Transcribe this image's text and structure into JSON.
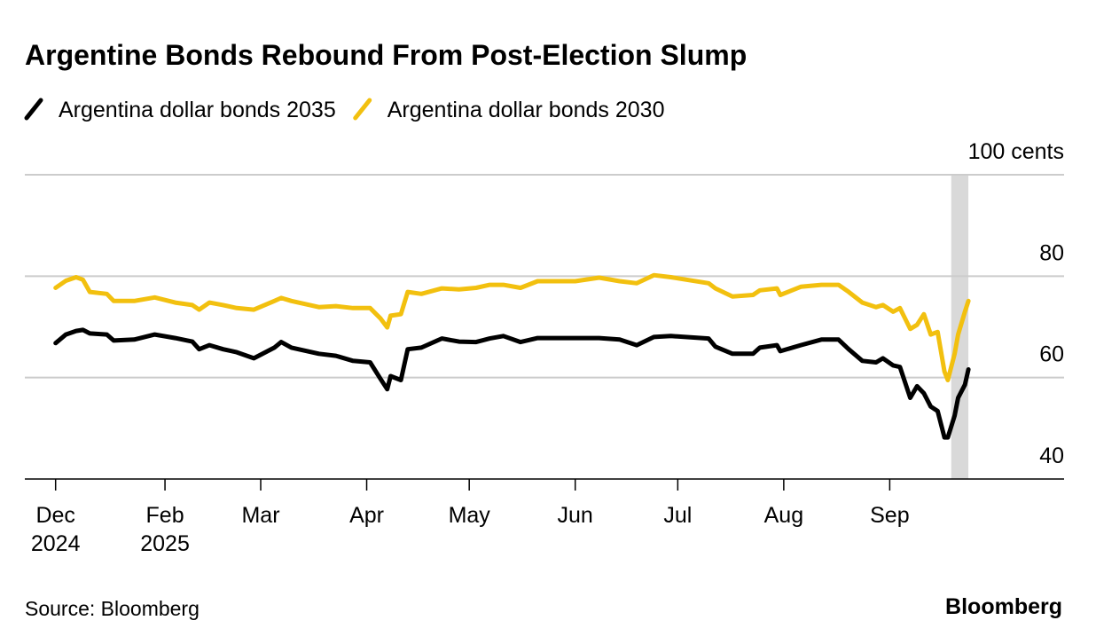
{
  "chart_data": {
    "type": "line",
    "title": "Argentine Bonds Rebound From Post-Election Slump",
    "source": "Source: Bloomberg",
    "brand": "Bloomberg",
    "x": [
      "2024-12-31",
      "2025-01-03",
      "2025-01-06",
      "2025-01-08",
      "2025-01-10",
      "2025-01-15",
      "2025-01-17",
      "2025-01-23",
      "2025-01-29",
      "2025-02-04",
      "2025-02-09",
      "2025-02-11",
      "2025-02-14",
      "2025-02-18",
      "2025-02-22",
      "2025-02-27",
      "2025-03-05",
      "2025-03-07",
      "2025-03-10",
      "2025-03-18",
      "2025-03-23",
      "2025-03-28",
      "2025-04-02",
      "2025-04-05",
      "2025-04-07",
      "2025-04-08",
      "2025-04-11",
      "2025-04-13",
      "2025-04-17",
      "2025-04-23",
      "2025-04-28",
      "2025-05-03",
      "2025-05-07",
      "2025-05-11",
      "2025-05-16",
      "2025-05-21",
      "2025-06-01",
      "2025-06-08",
      "2025-06-14",
      "2025-06-19",
      "2025-06-24",
      "2025-06-29",
      "2025-07-10",
      "2025-07-12",
      "2025-07-17",
      "2025-07-23",
      "2025-07-25",
      "2025-07-30",
      "2025-07-31",
      "2025-08-06",
      "2025-08-12",
      "2025-08-17",
      "2025-08-20",
      "2025-08-24",
      "2025-08-28",
      "2025-08-30",
      "2025-09-02",
      "2025-09-04",
      "2025-09-07",
      "2025-09-09",
      "2025-09-11",
      "2025-09-13",
      "2025-09-15",
      "2025-09-17",
      "2025-09-18",
      "2025-09-20",
      "2025-09-21",
      "2025-09-23",
      "2025-09-24"
    ],
    "series": [
      {
        "name": "Argentina dollar bonds 2035",
        "color": "#000000",
        "values": [
          66.8,
          68.5,
          69.2,
          69.4,
          68.7,
          68.5,
          67.3,
          67.5,
          68.5,
          67.8,
          67.1,
          65.6,
          66.4,
          65.6,
          65.0,
          63.8,
          65.9,
          67.0,
          65.9,
          64.7,
          64.3,
          63.3,
          63.0,
          59.8,
          57.7,
          60.3,
          59.5,
          65.6,
          65.9,
          67.7,
          67.1,
          67.0,
          67.7,
          68.2,
          67.0,
          67.8,
          67.8,
          67.8,
          67.5,
          66.4,
          68.0,
          68.2,
          67.7,
          66.1,
          64.7,
          64.7,
          65.9,
          66.4,
          65.2,
          66.4,
          67.5,
          67.5,
          65.6,
          63.3,
          63.0,
          63.8,
          62.4,
          62.1,
          56.0,
          58.3,
          56.9,
          54.3,
          53.4,
          48.2,
          48.2,
          52.5,
          56.0,
          58.6,
          61.6
        ]
      },
      {
        "name": "Argentina dollar bonds 2030",
        "color": "#f2c00f",
        "values": [
          77.7,
          79.1,
          79.8,
          79.3,
          76.9,
          76.5,
          75.1,
          75.1,
          75.8,
          74.8,
          74.3,
          73.4,
          74.8,
          74.3,
          73.7,
          73.4,
          75.1,
          75.7,
          75.1,
          73.9,
          74.1,
          73.7,
          73.7,
          71.7,
          69.9,
          72.2,
          72.5,
          76.9,
          76.5,
          77.6,
          77.4,
          77.7,
          78.3,
          78.3,
          77.7,
          79.0,
          79.0,
          79.7,
          79.0,
          78.6,
          80.2,
          79.8,
          78.6,
          77.6,
          76.0,
          76.3,
          77.2,
          77.6,
          76.3,
          77.9,
          78.3,
          78.3,
          76.9,
          74.8,
          73.9,
          74.3,
          73.0,
          73.7,
          69.6,
          70.4,
          72.5,
          68.5,
          69.0,
          61.2,
          59.5,
          64.7,
          68.5,
          73.0,
          75.1
        ]
      }
    ],
    "xlim": [
      "2024-12-22",
      "2025-10-22"
    ],
    "xticks": [
      {
        "value": "2024-12-31",
        "label": "Dec 2024"
      },
      {
        "value": "2025-02-01",
        "label": "Feb 2025"
      },
      {
        "value": "2025-03-01",
        "label": "Mar"
      },
      {
        "value": "2025-04-01",
        "label": "Apr"
      },
      {
        "value": "2025-05-01",
        "label": "May"
      },
      {
        "value": "2025-06-01",
        "label": "Jun"
      },
      {
        "value": "2025-07-01",
        "label": "Jul"
      },
      {
        "value": "2025-08-01",
        "label": "Aug"
      },
      {
        "value": "2025-09-01",
        "label": "Sep"
      }
    ],
    "ylim": [
      40,
      100
    ],
    "yticks": [
      40,
      60,
      80,
      {
        "value": 100,
        "label": "100 cents"
      }
    ],
    "shaded_range": [
      "2025-09-19",
      "2025-09-24"
    ],
    "grid": true
  }
}
